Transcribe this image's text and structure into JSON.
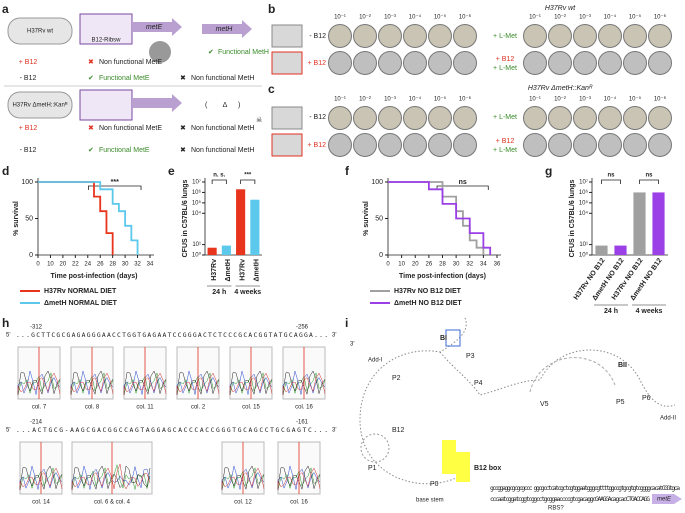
{
  "panel_labels": [
    "a",
    "b",
    "c",
    "d",
    "e",
    "f",
    "g",
    "h",
    "i"
  ],
  "a": {
    "strain_wt": "H37Rv wt",
    "strain_mut": "H37Rv ΔmetH::Kanᴿ",
    "riboswitch": "B12-Ribsw",
    "gene_e": "metE",
    "gene_h": "metH",
    "deletion": "Δ",
    "rows": [
      {
        "cond": "+ B12",
        "mete": "Non functional MetE",
        "meth": "Functional MetH"
      },
      {
        "cond": "- B12",
        "mete": "Functional MetE",
        "meth": "Non functional MetH"
      },
      {
        "cond": "+ B12",
        "mete": "Non functional MetE",
        "meth": "Non functional MetH"
      },
      {
        "cond": "- B12",
        "mete": "Functional MetE",
        "meth": "Non functional MetH"
      }
    ]
  },
  "b": {
    "title": "H37Rv wt",
    "dilutions": [
      "10⁻¹",
      "10⁻²",
      "10⁻³",
      "10⁻⁴",
      "10⁻⁵",
      "10⁻⁶"
    ],
    "left_rows": [
      "- B12",
      "+ B12"
    ],
    "right_rows": [
      "+ L-Met",
      "+ B12",
      "+ L-Met"
    ]
  },
  "c": {
    "title": "H37Rv ΔmetH::Kanᴿ",
    "dilutions": [
      "10⁻¹",
      "10⁻²",
      "10⁻³",
      "10⁻⁴",
      "10⁻⁵",
      "10⁻⁶"
    ],
    "left_rows": [
      "- B12",
      "+ B12"
    ],
    "right_rows": [
      "+ L-Met",
      "+ B12",
      "+ L-Met"
    ]
  },
  "chart_data": [
    {
      "type": "line",
      "xlabel": "Time post-infection (days)",
      "ylabel": "% survival",
      "xticks": [
        0,
        10,
        20,
        22,
        24,
        26,
        28,
        30,
        32,
        34
      ],
      "ylim": [
        0,
        100
      ],
      "yticks": [
        0,
        50,
        100
      ],
      "annotation": "***",
      "series": [
        {
          "name": "H37Rv NORMAL DIET",
          "color": "#e8341c",
          "x": [
            0,
            25,
            25,
            26,
            26,
            27,
            27,
            28,
            28
          ],
          "values": [
            100,
            100,
            80,
            80,
            60,
            60,
            30,
            30,
            0
          ]
        },
        {
          "name": "ΔmetH NORMAL DIET",
          "color": "#5bc8ec",
          "x": [
            0,
            26,
            26,
            28,
            28,
            29,
            29,
            30,
            30,
            31,
            31,
            32,
            32
          ],
          "values": [
            100,
            100,
            90,
            90,
            70,
            70,
            60,
            60,
            40,
            40,
            20,
            20,
            0
          ]
        }
      ]
    },
    {
      "type": "bar",
      "ylabel": "CFUS in C57BL/6 lungs",
      "log": true,
      "ylim": [
        1,
        10000000
      ],
      "yticks": [
        {
          "value": 1,
          "label": "10⁰"
        },
        {
          "value": 10,
          "label": "10¹"
        },
        {
          "value": 10000,
          "label": "10⁴"
        },
        {
          "value": 100000,
          "label": "10⁵"
        },
        {
          "value": 1000000,
          "label": "10⁶"
        },
        {
          "value": 10000000,
          "label": "10⁷"
        }
      ],
      "categories": [
        "H37Rv",
        "ΔmetH",
        "H37Rv",
        "ΔmetH"
      ],
      "values": [
        5,
        8,
        2000000,
        200000
      ],
      "colors": [
        "#e8341c",
        "#5bc8ec",
        "#e8341c",
        "#5bc8ec"
      ],
      "groups": [
        "24 h",
        "4 weeks"
      ],
      "annotations": [
        "n. s.",
        "***"
      ]
    },
    {
      "type": "line",
      "xlabel": "Time post-infection (days)",
      "ylabel": "% survival",
      "xticks": [
        0,
        10,
        20,
        26,
        28,
        30,
        32,
        34,
        36
      ],
      "ylim": [
        0,
        100
      ],
      "yticks": [
        0,
        50,
        100
      ],
      "annotation": "ns",
      "series": [
        {
          "name": "H37Rv NO B12 DIET",
          "color": "#a0a0a0",
          "x": [
            0,
            28,
            28,
            30,
            30,
            31,
            31,
            32,
            32,
            33,
            33,
            34,
            34
          ],
          "values": [
            100,
            100,
            80,
            80,
            60,
            60,
            40,
            40,
            20,
            20,
            10,
            10,
            0
          ]
        },
        {
          "name": "ΔmetH NO B12 DIET",
          "color": "#9b3fe6",
          "x": [
            0,
            26,
            26,
            28,
            28,
            30,
            30,
            32,
            32,
            34,
            34,
            35,
            35
          ],
          "values": [
            100,
            100,
            90,
            90,
            70,
            70,
            50,
            50,
            30,
            30,
            10,
            10,
            0
          ]
        }
      ]
    },
    {
      "type": "bar",
      "ylabel": "CFUS in C57BL/6 lungs",
      "log": true,
      "ylim": [
        1,
        10000000
      ],
      "yticks": [
        {
          "value": 1,
          "label": "10⁰"
        },
        {
          "value": 10,
          "label": "10¹"
        },
        {
          "value": 10000,
          "label": "10⁴"
        },
        {
          "value": 100000,
          "label": "10⁵"
        },
        {
          "value": 1000000,
          "label": "10⁶"
        },
        {
          "value": 10000000,
          "label": "10⁷"
        }
      ],
      "categories": [
        "H37Rv NO B12",
        "ΔmetH NO B12",
        "H37Rv NO B12",
        "ΔmetH NO B12"
      ],
      "values": [
        8,
        8,
        1000000,
        1000000
      ],
      "colors": [
        "#a0a0a0",
        "#9b3fe6",
        "#a0a0a0",
        "#9b3fe6"
      ],
      "groups": [
        "24 h",
        "4 weeks"
      ],
      "annotations": [
        "ns",
        "ns"
      ]
    }
  ],
  "h": {
    "seq1": {
      "start": "-312",
      "end": "-256",
      "five": "5'",
      "three": "3'",
      "text": "...GCTTCGCGAGAGGGAACCTGGTGAGAATCCGGGACTCTCCCGCACGGTATGCAGGA..."
    },
    "seq2": {
      "start": "-214",
      "end": "-161",
      "five": "5'",
      "three": "3'",
      "text": "...ACTGCG-AAGCGACGGCCAGTAGGAGCACCCACCGGGTGCAGCCTGCGAGTC..."
    },
    "cols1": [
      "col. 7",
      "col. 8",
      "col. 11",
      "col. 2",
      "col. 15",
      "col. 16"
    ],
    "cols2": [
      "col. 14",
      "col. 6 & col. 4",
      "col. 12",
      "col. 16"
    ]
  },
  "i": {
    "labels": {
      "bi": "BI",
      "bii": "BII",
      "p0": "P0",
      "p1": "P1",
      "p2": "P2",
      "p3": "P3",
      "p4": "P4",
      "p5": "P5",
      "p6": "P6",
      "v5": "V5",
      "b12": "B12",
      "box": "B12 box",
      "add1": "Add-I",
      "add2": "Add-II",
      "stem": "base stem",
      "three": "3'"
    },
    "seq1": "gccggaggcgcgcgccc ggcgcctcatcgctcgtggaatgggcgttttggccgtgcgtgtcggggcacatCGGtgca",
    "seq2": "cccaatcggatcggtcggcctgcggaaccccgtcgacaggcGAAGGAcagcacCTGACCAGG",
    "gene": "metE",
    "rbs": "RBS?"
  }
}
